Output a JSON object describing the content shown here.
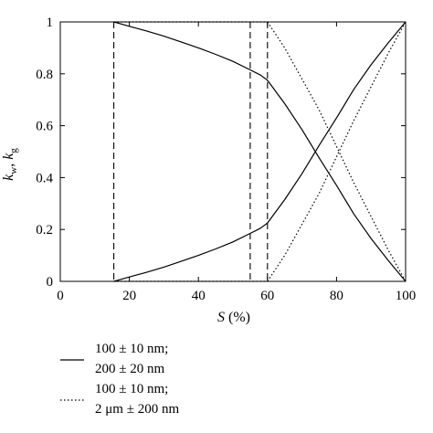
{
  "chart_data": {
    "type": "line",
    "xlabel": {
      "italic": "S",
      "rest": " (%)"
    },
    "ylabel": {
      "k1": "k",
      "s1": "w",
      "sep": ", ",
      "k2": "k",
      "s2": "g"
    },
    "xlim": [
      0,
      100
    ],
    "ylim": [
      0,
      1
    ],
    "xticks": [
      0,
      20,
      40,
      60,
      80,
      100
    ],
    "yticks": [
      0,
      0.2,
      0.4,
      0.6,
      0.8,
      1
    ],
    "ytick_labels": [
      "0",
      "0.2",
      "0.4",
      "0.6",
      "0.8",
      "1"
    ],
    "grid": false,
    "legend_position": "below",
    "series": [
      {
        "name": "100 ± 10 nm; 200 ± 20 nm",
        "legend_lines": [
          "100 ± 10 nm;",
          "200 ± 20 nm"
        ],
        "style": "solid",
        "curves": [
          {
            "x": [
              15.5,
              20,
              25,
              30,
              35,
              40,
              45,
              50,
              55,
              58,
              60
            ],
            "y": [
              1.0,
              0.983,
              0.965,
              0.945,
              0.923,
              0.9,
              0.875,
              0.848,
              0.815,
              0.795,
              0.775
            ]
          },
          {
            "x": [
              60,
              65,
              70,
              75,
              80,
              85,
              90,
              95,
              100
            ],
            "y": [
              0.775,
              0.685,
              0.585,
              0.475,
              0.37,
              0.26,
              0.165,
              0.08,
              0.0
            ]
          },
          {
            "x": [
              15.5,
              20,
              25,
              30,
              35,
              40,
              45,
              50,
              55,
              58,
              60
            ],
            "y": [
              0.0,
              0.017,
              0.035,
              0.055,
              0.077,
              0.1,
              0.125,
              0.152,
              0.185,
              0.205,
              0.225
            ]
          },
          {
            "x": [
              60,
              65,
              70,
              75,
              80,
              85,
              90,
              95,
              100
            ],
            "y": [
              0.225,
              0.315,
              0.415,
              0.525,
              0.63,
              0.74,
              0.835,
              0.92,
              1.0
            ]
          }
        ]
      },
      {
        "name": "100 ± 10 nm; 2 μm ± 200 nm",
        "legend_lines": [
          "100 ± 10 nm;",
          "2 μm ± 200 nm"
        ],
        "style": "dotted",
        "curves": [
          {
            "x": [
              15.5,
              60
            ],
            "y": [
              1.0,
              1.0
            ]
          },
          {
            "x": [
              60,
              65,
              70,
              75,
              80,
              85,
              90,
              95,
              100
            ],
            "y": [
              1.0,
              0.9,
              0.78,
              0.66,
              0.52,
              0.38,
              0.25,
              0.12,
              0.0
            ]
          },
          {
            "x": [
              15.5,
              60
            ],
            "y": [
              0.0,
              0.0
            ]
          },
          {
            "x": [
              60,
              65,
              70,
              75,
              80,
              85,
              90,
              95,
              100
            ],
            "y": [
              0.0,
              0.1,
              0.22,
              0.34,
              0.48,
              0.62,
              0.75,
              0.88,
              1.0
            ]
          }
        ]
      }
    ],
    "vertical_dashed_lines": [
      15.5,
      55,
      60
    ]
  }
}
